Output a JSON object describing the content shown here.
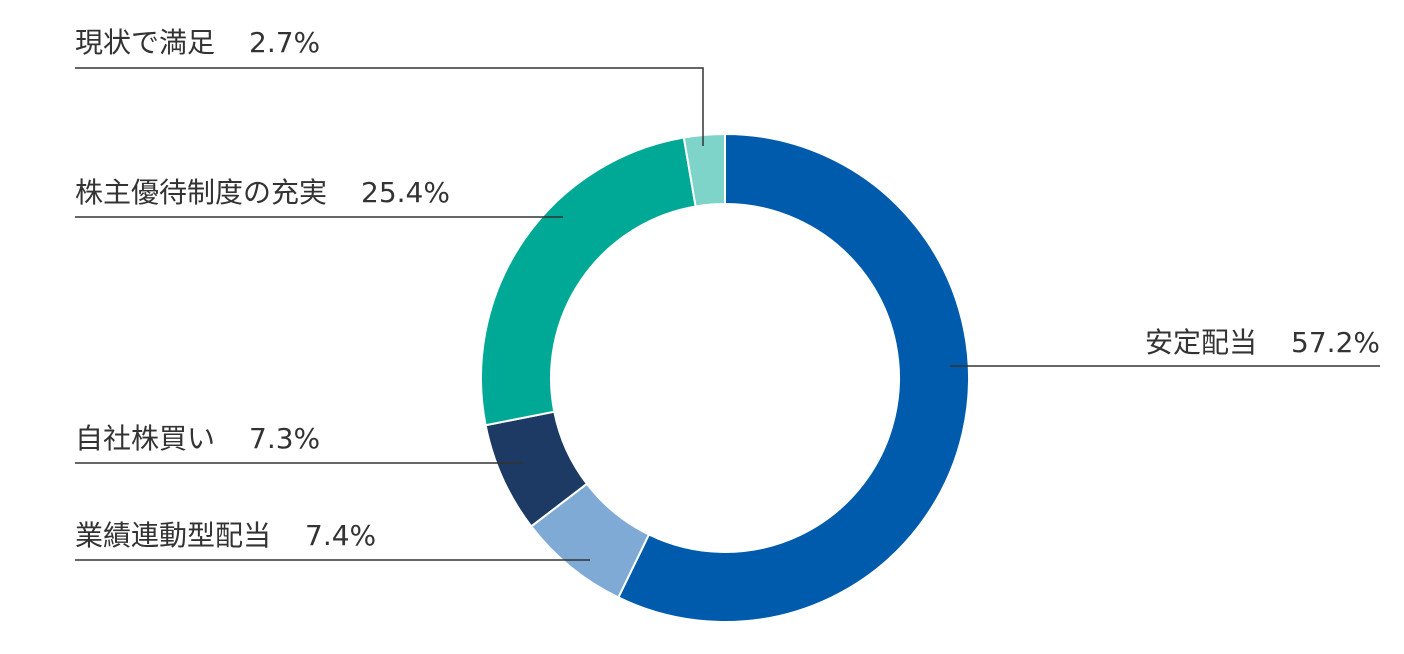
{
  "chart_data": {
    "type": "donut",
    "categories": [
      "安定配当",
      "業績連動型配当",
      "自社株買い",
      "株主優待制度の充実",
      "現状で満足"
    ],
    "values": [
      57.2,
      7.4,
      7.3,
      25.4,
      2.7
    ],
    "value_labels": [
      "57.2%",
      "7.4%",
      "7.3%",
      "25.4%",
      "2.7%"
    ],
    "colors": [
      "#005bac",
      "#7faad6",
      "#1c3a63",
      "#00a995",
      "#7fd4c9"
    ]
  }
}
